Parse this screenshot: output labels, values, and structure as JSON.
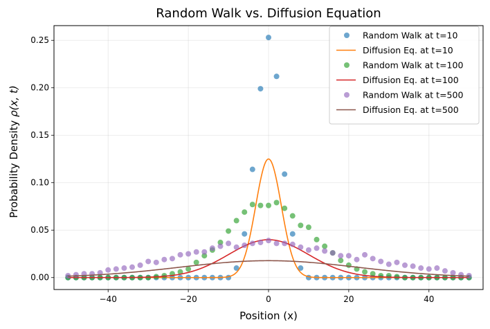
{
  "chart_data": {
    "type": "scatter",
    "title": "Random Walk vs. Diffusion Equation",
    "xlabel": "Position (x)",
    "ylabel_main": "Probability Density ",
    "ylabel_math": "ρ(x, t)",
    "xlim": [
      -53.5,
      53.5
    ],
    "ylim": [
      -0.0126,
      0.2655
    ],
    "xticks": [
      -40,
      -20,
      0,
      20,
      40
    ],
    "xtick_labels": [
      "−40",
      "−20",
      "0",
      "20",
      "40"
    ],
    "yticks": [
      0.0,
      0.05,
      0.1,
      0.15,
      0.2,
      0.25
    ],
    "ytick_labels": [
      "0.00",
      "0.05",
      "0.10",
      "0.15",
      "0.20",
      "0.25"
    ],
    "grid": true,
    "legend_position": "upper right",
    "series": [
      {
        "name": "Random Walk at t=10",
        "kind": "markers",
        "color": "#1f77b4",
        "x": [
          -50,
          -48,
          -46,
          -44,
          -42,
          -40,
          -38,
          -36,
          -34,
          -32,
          -30,
          -28,
          -26,
          -24,
          -22,
          -20,
          -18,
          -16,
          -14,
          -12,
          -10,
          -8,
          -6,
          -4,
          -2,
          0,
          2,
          4,
          6,
          8,
          10,
          12,
          14,
          16,
          18,
          20,
          22,
          24,
          26,
          28,
          30,
          32,
          34,
          36,
          38,
          40,
          42,
          44,
          46,
          48,
          50
        ],
        "y": [
          0,
          0,
          0,
          0,
          0,
          0,
          0,
          0,
          0,
          0,
          0,
          0,
          0,
          0,
          0,
          0,
          0,
          0,
          0,
          0,
          0,
          0.01,
          0.046,
          0.114,
          0.199,
          0.253,
          0.212,
          0.109,
          0.046,
          0.01,
          0,
          0,
          0,
          0,
          0,
          0,
          0,
          0,
          0,
          0,
          0,
          0,
          0,
          0,
          0,
          0,
          0,
          0,
          0,
          0,
          0
        ]
      },
      {
        "name": "Diffusion Eq. at t=10",
        "kind": "line",
        "color": "#ff7f0e",
        "sigma": 3.19,
        "amplitude": 0.125
      },
      {
        "name": "Random Walk at t=100",
        "kind": "markers",
        "color": "#2ca02c",
        "x": [
          -50,
          -48,
          -46,
          -44,
          -42,
          -40,
          -38,
          -36,
          -34,
          -32,
          -30,
          -28,
          -26,
          -24,
          -22,
          -20,
          -18,
          -16,
          -14,
          -12,
          -10,
          -8,
          -6,
          -4,
          -2,
          0,
          2,
          4,
          6,
          8,
          10,
          12,
          14,
          16,
          18,
          20,
          22,
          24,
          26,
          28,
          30,
          32,
          34,
          36,
          38,
          40,
          42,
          44,
          46,
          48,
          50
        ],
        "y": [
          0,
          0,
          0,
          0,
          0,
          0,
          0,
          0,
          0,
          0,
          0,
          0.001,
          0.002,
          0.004,
          0.006,
          0.009,
          0.016,
          0.023,
          0.029,
          0.037,
          0.049,
          0.06,
          0.069,
          0.077,
          0.076,
          0.076,
          0.079,
          0.073,
          0.065,
          0.055,
          0.053,
          0.04,
          0.033,
          0.026,
          0.018,
          0.013,
          0.009,
          0.006,
          0.004,
          0.002,
          0.002,
          0.001,
          0,
          0,
          0,
          0,
          0,
          0,
          0,
          0,
          0
        ]
      },
      {
        "name": "Diffusion Eq. at t=100",
        "kind": "line",
        "color": "#d62728",
        "sigma": 10,
        "amplitude": 0.0399
      },
      {
        "name": "Random Walk at t=500",
        "kind": "markers",
        "color": "#9467bd",
        "x": [
          -50,
          -48,
          -46,
          -44,
          -42,
          -40,
          -38,
          -36,
          -34,
          -32,
          -30,
          -28,
          -26,
          -24,
          -22,
          -20,
          -18,
          -16,
          -14,
          -12,
          -10,
          -8,
          -6,
          -4,
          -2,
          0,
          2,
          4,
          6,
          8,
          10,
          12,
          14,
          16,
          18,
          20,
          22,
          24,
          26,
          28,
          30,
          32,
          34,
          36,
          38,
          40,
          42,
          44,
          46,
          48,
          50
        ],
        "y": [
          0.002,
          0.003,
          0.004,
          0.004,
          0.005,
          0.008,
          0.009,
          0.01,
          0.011,
          0.013,
          0.017,
          0.016,
          0.019,
          0.02,
          0.024,
          0.025,
          0.027,
          0.027,
          0.031,
          0.033,
          0.036,
          0.032,
          0.034,
          0.036,
          0.037,
          0.039,
          0.036,
          0.036,
          0.035,
          0.032,
          0.029,
          0.031,
          0.028,
          0.026,
          0.023,
          0.023,
          0.019,
          0.024,
          0.02,
          0.017,
          0.014,
          0.016,
          0.013,
          0.012,
          0.01,
          0.009,
          0.01,
          0.007,
          0.005,
          0.003,
          0.002
        ]
      },
      {
        "name": "Diffusion Eq. at t=500",
        "kind": "line",
        "color": "#8c564b",
        "sigma": 22.36,
        "amplitude": 0.0178
      }
    ]
  }
}
